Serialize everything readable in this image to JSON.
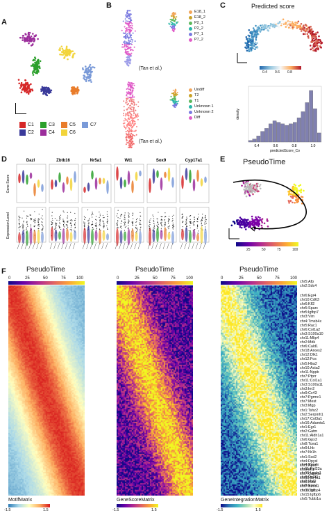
{
  "panels": {
    "A": "A",
    "B": "B",
    "C": "C",
    "D": "D",
    "E": "E",
    "F": "F"
  },
  "panelA": {
    "legend": [
      {
        "label": "C1",
        "color": "#d62728"
      },
      {
        "label": "C2",
        "color": "#3a3a9a"
      },
      {
        "label": "C3",
        "color": "#2ca02c"
      },
      {
        "label": "C4",
        "color": "#9b2d9b"
      },
      {
        "label": "C5",
        "color": "#e97c2a"
      },
      {
        "label": "C6",
        "color": "#f2d43a"
      },
      {
        "label": "C7",
        "color": "#7a9ad8"
      }
    ]
  },
  "panelB": {
    "top_legend": [
      {
        "label": "E18_1",
        "color": "#f2a65a"
      },
      {
        "label": "E18_2",
        "color": "#c9a227"
      },
      {
        "label": "P2_1",
        "color": "#5cb85c"
      },
      {
        "label": "P2_2",
        "color": "#2ab7a9"
      },
      {
        "label": "P7_1",
        "color": "#7a7ae0"
      },
      {
        "label": "P7_2",
        "color": "#e05cc8"
      }
    ],
    "bottom_legend": [
      {
        "label": "Undiff",
        "color": "#f2a65a"
      },
      {
        "label": "T2",
        "color": "#c9a227"
      },
      {
        "label": "T1",
        "color": "#5cb85c"
      },
      {
        "label": "Unknown 1",
        "color": "#2ab7a9"
      },
      {
        "label": "Unknown 2",
        "color": "#7a7ae0"
      },
      {
        "label": "Diff",
        "color": "#e05cc8"
      }
    ],
    "ref_top": "(Tan et al.)",
    "ref_bottom": "(Tan et al.)"
  },
  "panelC": {
    "title": "Predicted score",
    "scale_ticks": [
      "0.4",
      "0.6",
      "0.8"
    ],
    "hist_xlabel": "predictedScore_Co",
    "hist_ylabel": "density",
    "hist_ticks": [
      "0.4",
      "0.6",
      "0.8",
      "1.0"
    ],
    "chart_data": {
      "type": "bar",
      "categories": [
        "0.30",
        "0.34",
        "0.38",
        "0.42",
        "0.46",
        "0.50",
        "0.54",
        "0.58",
        "0.62",
        "0.66",
        "0.70",
        "0.74",
        "0.78",
        "0.82",
        "0.86",
        "0.90",
        "0.94",
        "0.98"
      ],
      "values": [
        1,
        2,
        4,
        7,
        9,
        12,
        14,
        13,
        12,
        11,
        12,
        13,
        16,
        20,
        26,
        34,
        22,
        6
      ],
      "xlabel": "predictedScore_Co",
      "ylabel": "density"
    }
  },
  "panelD": {
    "genes": [
      "Dazl",
      "Zbtb16",
      "Nr5a1",
      "Wt1",
      "Sox9",
      "Cyp17a1"
    ],
    "ylabel_top": "Gene Score",
    "ylabel_bottom": "Expression Level"
  },
  "panelE": {
    "title": "PseudoTime",
    "scale_ticks": [
      "25",
      "50",
      "75",
      "100"
    ]
  },
  "panelF": {
    "heatmaps": [
      {
        "title": "PseudoTime",
        "ticks": [
          "0",
          "25",
          "50",
          "75",
          "100"
        ],
        "footer": "MotifMatrix",
        "cmin": "-1.5",
        "cmax": "1.5"
      },
      {
        "title": "PseudoTime",
        "ticks": [
          "0",
          "25",
          "50",
          "75",
          "100"
        ],
        "footer": "GeneScoreMatrix",
        "cmin": "-1.5",
        "cmax": "1.5"
      },
      {
        "title": "PseudoTime",
        "ticks": [
          "0",
          "25",
          "50",
          "75",
          "100"
        ],
        "footer": "GeneIntegrationMatrix",
        "cmin": "-1.5",
        "cmax": "1.5"
      }
    ],
    "gene_labels_top": "chr5:Afp\nchr2:Sdc4",
    "gene_labels": "chr6:Egr4\nchr10:Cd63\nchr6:Klf2\nchr5:Sparc\nchr5:Igfbp7\nchr3:Vim\nchr4:Tmsb4x\nchr5:Rac1\nchr6:Col1a2\nchr3:S100a10\nchr11:Mlip4\nchr2:Mdk\nchr6:Cald1\nchr18:Arxes2\nchr12:Dlk1\nchr12:Fos\nchr5:Hba2\nchr10:Acta2\nchr11:Nppb\nchr7:Ptprr\nchr11:Col1a1\nchr3:S100a11\nchr3:Ier2\nchr9:Cx43\nchr7:Pgrmc1\nchr7:Mest\nchr3:Mgp\nchr1:Tshz2\nchr2:Serpinh1\nchr17:Col3a1\nchr16:Adamts1\nchr1:Egr1\nchr2:Gatm\nchr11:Aldh1a1\nchr6:Gpx3\nchr8:Tcea1\nchr9:Lhb\nchr7:Nr1h\nchr1:Scd2\nchr4:Dpysl\nchr1:Apoe\nchr9:Mt1\nchr7:Cdkn1c\nchr10:Nr4a1\nchr6:Inha\nchr7:Stmn1\nchr3:Ctsl",
    "gene_labels_bottom": "chr4:Rps4x\nchr11:Rpl23a\nchr15:Lgals1\nchr8:Rpl30\nchr2:Myl9\nchr6:Ecm1\nchr11:Igfbp4\nchr15:Igfbp6\nchr5:Tubb1a"
  }
}
